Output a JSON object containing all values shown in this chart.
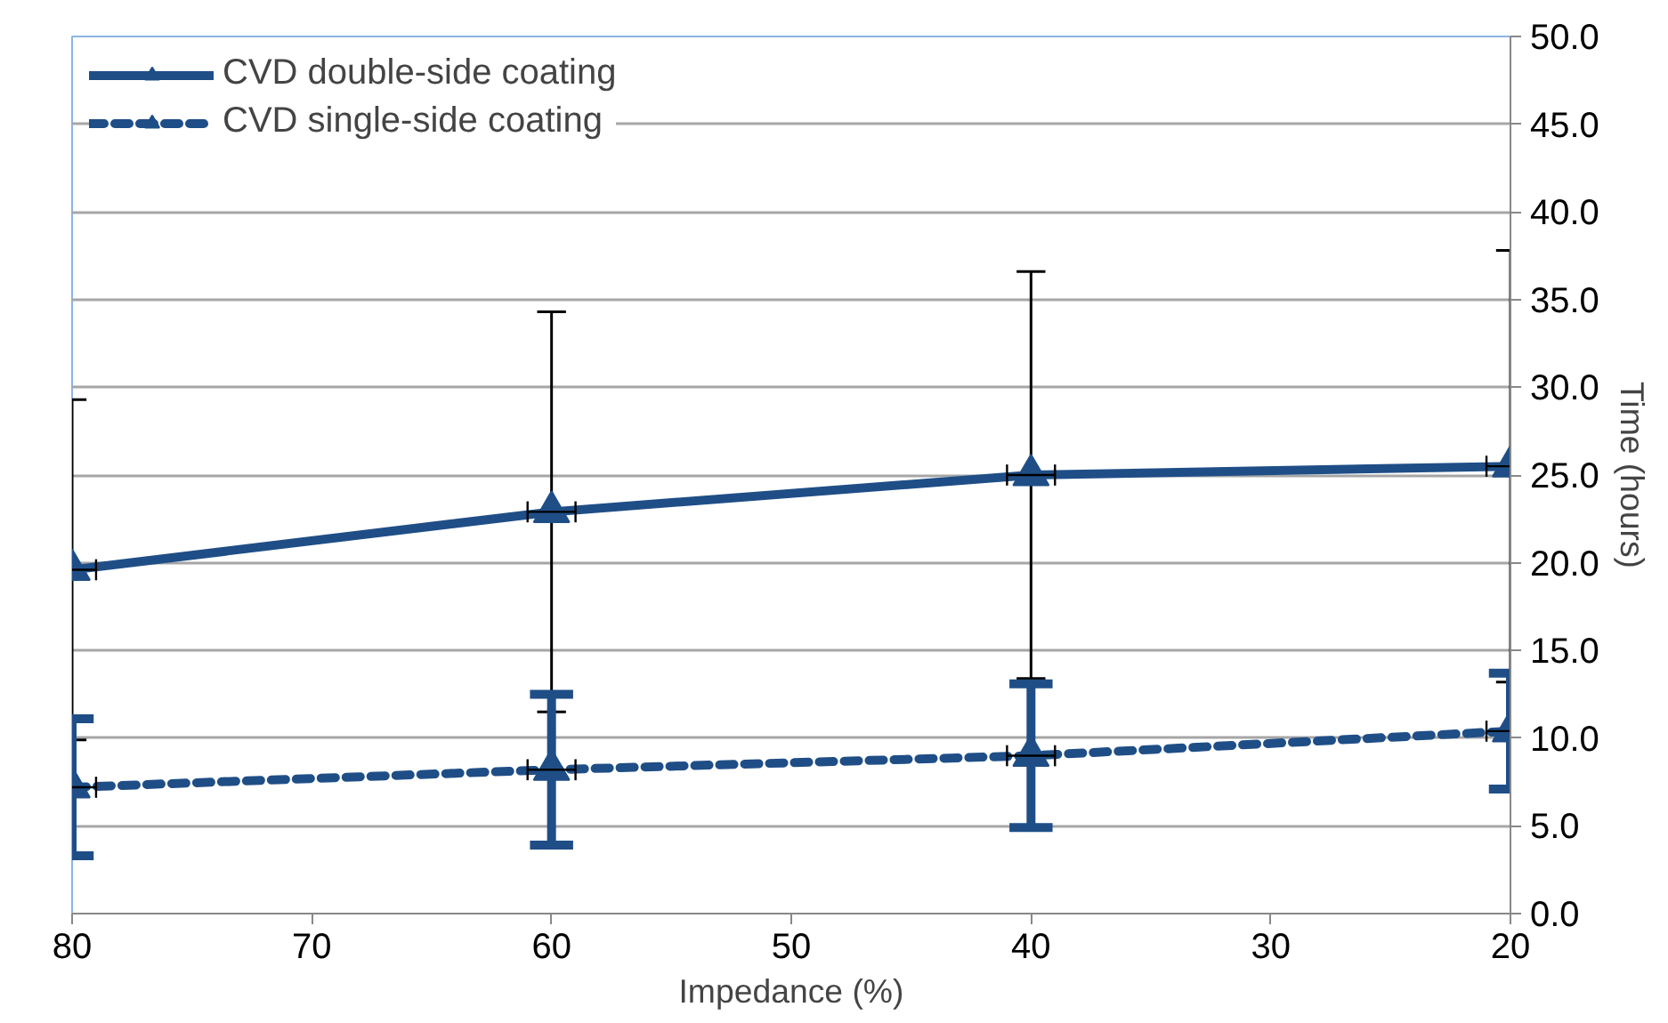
{
  "chart_data": {
    "type": "line",
    "xlabel": "Impedance (%)",
    "ylabel": "Time (hours)",
    "x": [
      80,
      60,
      40,
      20
    ],
    "xlim": [
      80,
      20
    ],
    "xticks": [
      80,
      70,
      60,
      50,
      40,
      30,
      20
    ],
    "ylim": [
      0,
      50
    ],
    "yticks": [
      {
        "value": 0,
        "label": "0.0"
      },
      {
        "value": 5,
        "label": "5.0"
      },
      {
        "value": 10,
        "label": "10.0"
      },
      {
        "value": 15,
        "label": "15.0"
      },
      {
        "value": 20,
        "label": "20.0"
      },
      {
        "value": 25,
        "label": "25.0"
      },
      {
        "value": 30,
        "label": "30.0"
      },
      {
        "value": 35,
        "label": "35.0"
      },
      {
        "value": 40,
        "label": "40.0"
      },
      {
        "value": 45,
        "label": "45.0"
      },
      {
        "value": 50,
        "label": "50.0"
      }
    ],
    "grid": "y",
    "legend": "top left",
    "marker": "triangle",
    "series": [
      {
        "name": "CVD double-side coating",
        "color": "#1f4e87",
        "line_style": "solid",
        "values": [
          19.6,
          22.9,
          25.0,
          25.5
        ],
        "errors": [
          9.7,
          11.4,
          11.6,
          12.3
        ],
        "xerrors": [
          1,
          1,
          1,
          1
        ]
      },
      {
        "name": "CVD single-side coating",
        "color": "#1f4e87",
        "line_style": "dashed",
        "values": [
          7.2,
          8.2,
          9.0,
          10.4
        ],
        "errors": [
          3.9,
          4.3,
          4.1,
          3.3
        ],
        "xerrors": [
          1,
          1,
          1,
          1
        ]
      }
    ]
  }
}
